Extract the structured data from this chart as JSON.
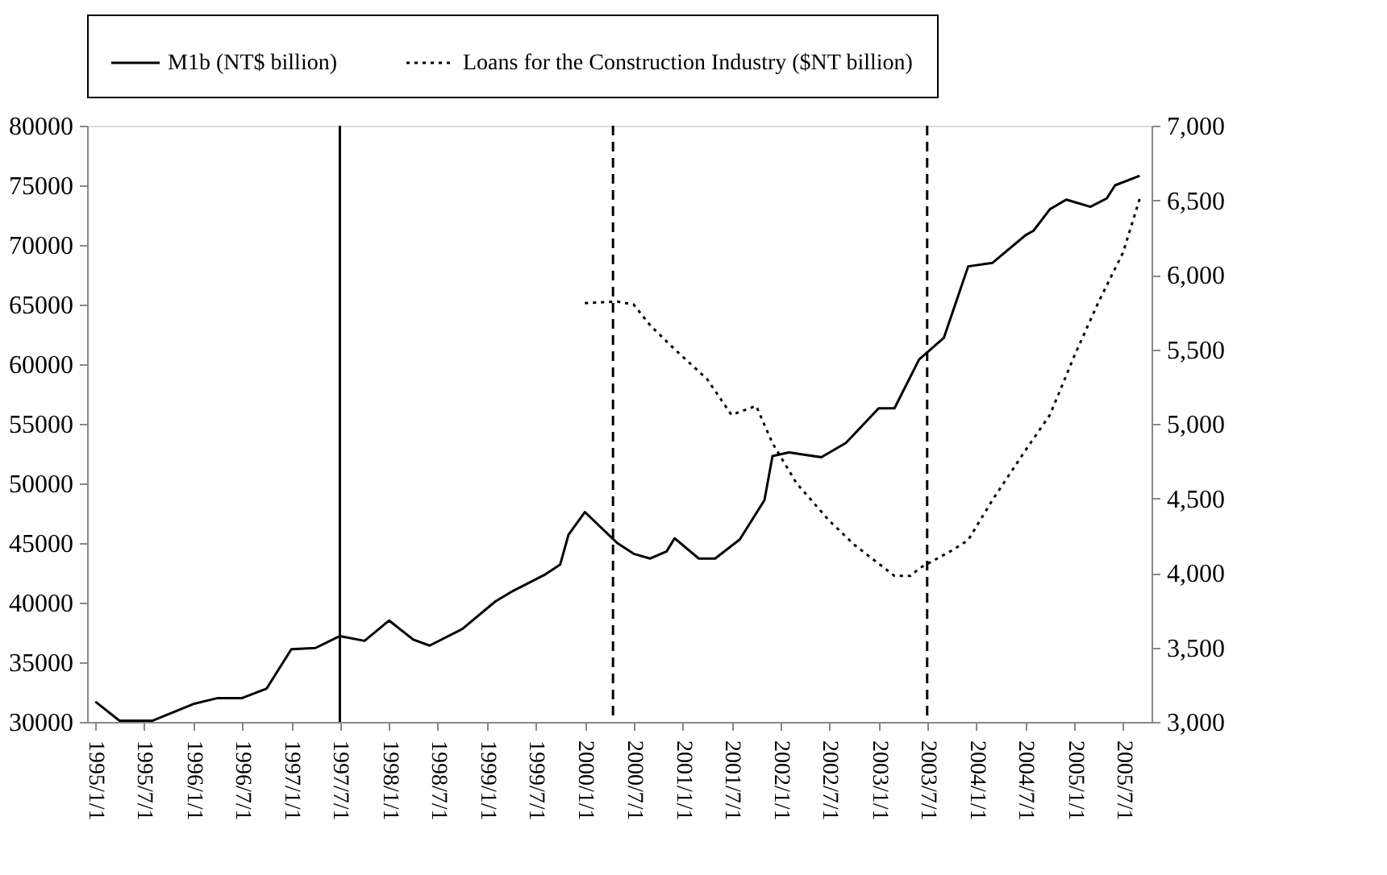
{
  "chart_data": {
    "type": "line",
    "xlim": [
      "1994-12-01",
      "2005-10-15"
    ],
    "xticks": [
      {
        "value": "1995-01-01",
        "label": "1995/1/1"
      },
      {
        "value": "1995-07-01",
        "label": "1995/7/1"
      },
      {
        "value": "1996-01-01",
        "label": "1996/1/1"
      },
      {
        "value": "1996-07-01",
        "label": "1996/7/1"
      },
      {
        "value": "1997-01-01",
        "label": "1997/1/1"
      },
      {
        "value": "1997-07-01",
        "label": "1997/7/1"
      },
      {
        "value": "1998-01-01",
        "label": "1998/1/1"
      },
      {
        "value": "1998-07-01",
        "label": "1998/7/1"
      },
      {
        "value": "1999-01-01",
        "label": "1999/1/1"
      },
      {
        "value": "1999-07-01",
        "label": "1999/7/1"
      },
      {
        "value": "2000-01-01",
        "label": "2000/1/1"
      },
      {
        "value": "2000-07-01",
        "label": "2000/7/1"
      },
      {
        "value": "2001-01-01",
        "label": "2001/1/1"
      },
      {
        "value": "2001-07-01",
        "label": "2001/7/1"
      },
      {
        "value": "2002-01-01",
        "label": "2002/1/1"
      },
      {
        "value": "2002-07-01",
        "label": "2002/7/1"
      },
      {
        "value": "2003-01-01",
        "label": "2003/1/1"
      },
      {
        "value": "2003-07-01",
        "label": "2003/7/1"
      },
      {
        "value": "2004-01-01",
        "label": "2004/1/1"
      },
      {
        "value": "2004-07-01",
        "label": "2004/7/1"
      },
      {
        "value": "2005-01-01",
        "label": "2005/1/1"
      },
      {
        "value": "2005-07-01",
        "label": "2005/7/1"
      }
    ],
    "ylim": [
      30000,
      80000
    ],
    "yticks": [
      30000,
      35000,
      40000,
      45000,
      50000,
      55000,
      60000,
      65000,
      70000,
      75000,
      80000
    ],
    "y2lim": [
      3000,
      7000
    ],
    "y2ticks": [
      {
        "value": 3000,
        "label": "3,000"
      },
      {
        "value": 3500,
        "label": "3,500"
      },
      {
        "value": 4000,
        "label": "4,000"
      },
      {
        "value": 4500,
        "label": "4,500"
      },
      {
        "value": 5000,
        "label": "5,000"
      },
      {
        "value": 5500,
        "label": "5,500"
      },
      {
        "value": 6000,
        "label": "6,000"
      },
      {
        "value": 6500,
        "label": "6,500"
      },
      {
        "value": 7000,
        "label": "7,000"
      }
    ],
    "grid": false,
    "legend": "top",
    "series": [
      {
        "name": "M1b (NT$ billion)",
        "color": "#000000",
        "line_style": "solid",
        "x": [
          "1995-01",
          "1995-04",
          "1995-08",
          "1996-01",
          "1996-04",
          "1996-07",
          "1996-10",
          "1997-01",
          "1997-04",
          "1997-07",
          "1997-10",
          "1998-01",
          "1998-04",
          "1998-06",
          "1998-10",
          "1999-02",
          "1999-04",
          "1999-08",
          "1999-10",
          "1999-11",
          "2000-01",
          "2000-05",
          "2000-07",
          "2000-09",
          "2000-11",
          "2000-12",
          "2001-03",
          "2001-05",
          "2001-08",
          "2001-11",
          "2001-12",
          "2002-02",
          "2002-04",
          "2002-06",
          "2002-09",
          "2003-01",
          "2003-03",
          "2003-06",
          "2003-09",
          "2003-12",
          "2004-03",
          "2004-07",
          "2004-08",
          "2004-10",
          "2004-12",
          "2005-03",
          "2005-05",
          "2005-06",
          "2005-09"
        ],
        "values": [
          31700,
          30100,
          30100,
          31500,
          32000,
          32000,
          32800,
          36100,
          36200,
          37200,
          36800,
          38500,
          36900,
          36400,
          37800,
          40100,
          40900,
          42300,
          43200,
          45700,
          47600,
          45000,
          44100,
          43700,
          44300,
          45400,
          43700,
          43700,
          45300,
          48600,
          52300,
          52600,
          52400,
          52200,
          53400,
          56300,
          56300,
          60400,
          62200,
          68200,
          68500,
          70800,
          71200,
          73000,
          73800,
          73200,
          73900,
          75000,
          75800
        ]
      },
      {
        "name": "Loans for the Construction Industry ($NT billion)",
        "color": "#000000",
        "line_style": "dotted",
        "axis": "y2",
        "x": [
          "2000-01",
          "2000-05",
          "2000-07",
          "2000-09",
          "2000-12",
          "2001-04",
          "2001-07",
          "2001-10",
          "2001-12",
          "2002-03",
          "2002-07",
          "2002-10",
          "2003-03",
          "2003-05",
          "2003-06",
          "2003-10",
          "2003-12",
          "2004-03",
          "2004-07",
          "2004-10",
          "2005-01",
          "2005-04",
          "2005-07",
          "2005-09"
        ],
        "values": [
          5810,
          5820,
          5800,
          5660,
          5500,
          5300,
          5060,
          5120,
          4870,
          4600,
          4350,
          4190,
          3980,
          3980,
          4030,
          4150,
          4220,
          4490,
          4820,
          5060,
          5460,
          5820,
          6150,
          6510
        ]
      }
    ],
    "ref_lines": [
      {
        "axis": "x",
        "value": "1997-07-01",
        "color": "#000000",
        "line_style": "solid"
      },
      {
        "axis": "x",
        "value": "2000-04-15",
        "color": "#000000",
        "line_style": "dashed"
      },
      {
        "axis": "x",
        "value": "2003-07-01",
        "color": "#000000",
        "line_style": "dashed"
      }
    ]
  }
}
